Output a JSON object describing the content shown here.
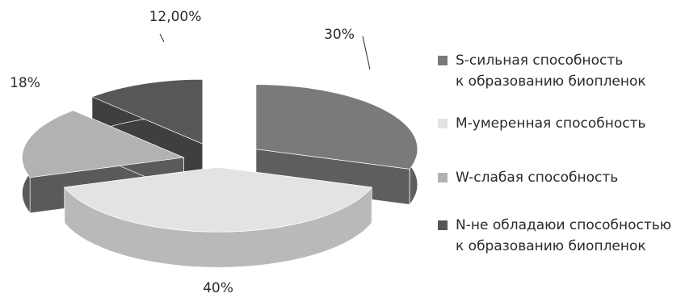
{
  "chart_data": {
    "type": "pie",
    "variant": "3d-exploded",
    "legend_position": "right",
    "slices": [
      {
        "key": "S",
        "label": "S-сильная способность\nк образованию биопленок",
        "value": 30,
        "value_label": "30%",
        "color": "#7a7a7a",
        "side_color": "#5e5e5e"
      },
      {
        "key": "M",
        "label": "M-умеренная способность",
        "value": 40,
        "value_label": "40%",
        "color": "#e3e3e3",
        "side_color": "#b9b9b9"
      },
      {
        "key": "W",
        "label": "W-слабая способность",
        "value": 18,
        "value_label": "18%",
        "color": "#b2b2b2",
        "side_color": "#5a5a5a"
      },
      {
        "key": "N",
        "label": "N-не обладаюи способностью\nк образованию биопленок",
        "value": 12,
        "value_label": "12,00%",
        "color": "#575757",
        "side_color": "#3f3f3f"
      }
    ]
  }
}
